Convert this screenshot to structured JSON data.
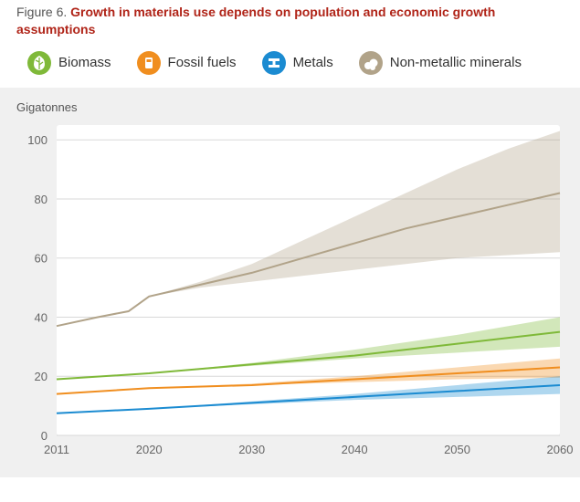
{
  "figure": {
    "label": "Figure 6.",
    "title": "Growth in materials use depends on population and economic growth assumptions"
  },
  "legend": [
    {
      "key": "biomass",
      "label": "Biomass",
      "color": "#7fb939",
      "icon": "leaf"
    },
    {
      "key": "fossil",
      "label": "Fossil fuels",
      "color": "#f08e1f",
      "icon": "can"
    },
    {
      "key": "metals",
      "label": "Metals",
      "color": "#1b8bd1",
      "icon": "ibeam"
    },
    {
      "key": "nonmetallic",
      "label": "Non-metallic minerals",
      "color": "#b1a389",
      "icon": "rocks"
    }
  ],
  "chart": {
    "type": "line-band",
    "y_axis_title": "Gigatonnes",
    "background_color": "#f0f0f0",
    "panel_color": "#ffffff",
    "grid_color": "#d8d8d8",
    "tick_label_color": "#666666",
    "tick_fontsize": 13,
    "line_width": 2,
    "band_opacity": 0.35,
    "x": {
      "domain": [
        2011,
        2060
      ],
      "ticks": [
        2011,
        2020,
        2030,
        2040,
        2050,
        2060
      ],
      "labels": [
        "2011",
        "2020",
        "2030",
        "2040",
        "2050",
        "2060"
      ]
    },
    "y": {
      "domain": [
        0,
        105
      ],
      "ticks": [
        0,
        20,
        40,
        60,
        80,
        100
      ],
      "labels": [
        "0",
        "20",
        "40",
        "60",
        "80",
        "100"
      ]
    },
    "series": [
      {
        "key": "nonmetallic",
        "color": "#b1a389",
        "years": [
          2011,
          2015,
          2018,
          2020,
          2025,
          2030,
          2035,
          2040,
          2045,
          2050,
          2055,
          2060
        ],
        "center": [
          37,
          40,
          42,
          47,
          51,
          55,
          60,
          65,
          70,
          74,
          78,
          82
        ],
        "lo": [
          37,
          40,
          42,
          47,
          50,
          52,
          54,
          56,
          58,
          60,
          61,
          62
        ],
        "hi": [
          37,
          40,
          42,
          47,
          52,
          58,
          66,
          74,
          82,
          90,
          97,
          103
        ]
      },
      {
        "key": "biomass",
        "color": "#7fb939",
        "years": [
          2011,
          2020,
          2030,
          2040,
          2050,
          2060
        ],
        "center": [
          19,
          21,
          24,
          27,
          31,
          35
        ],
        "lo": [
          19,
          21,
          23.5,
          26,
          28,
          30
        ],
        "hi": [
          19,
          21,
          24.5,
          29,
          34,
          40
        ]
      },
      {
        "key": "fossil",
        "color": "#f08e1f",
        "years": [
          2011,
          2020,
          2030,
          2040,
          2050,
          2060
        ],
        "center": [
          14,
          16,
          17,
          19,
          21,
          23
        ],
        "lo": [
          14,
          16,
          17,
          18,
          19,
          19.5
        ],
        "hi": [
          14,
          16,
          17.5,
          20,
          23,
          26
        ]
      },
      {
        "key": "metals",
        "color": "#1b8bd1",
        "years": [
          2011,
          2020,
          2030,
          2040,
          2050,
          2060
        ],
        "center": [
          7.5,
          9,
          11,
          13,
          15,
          17
        ],
        "lo": [
          7.5,
          9,
          10.5,
          12,
          13,
          14
        ],
        "hi": [
          7.5,
          9,
          11.5,
          14,
          17,
          20
        ]
      }
    ]
  }
}
